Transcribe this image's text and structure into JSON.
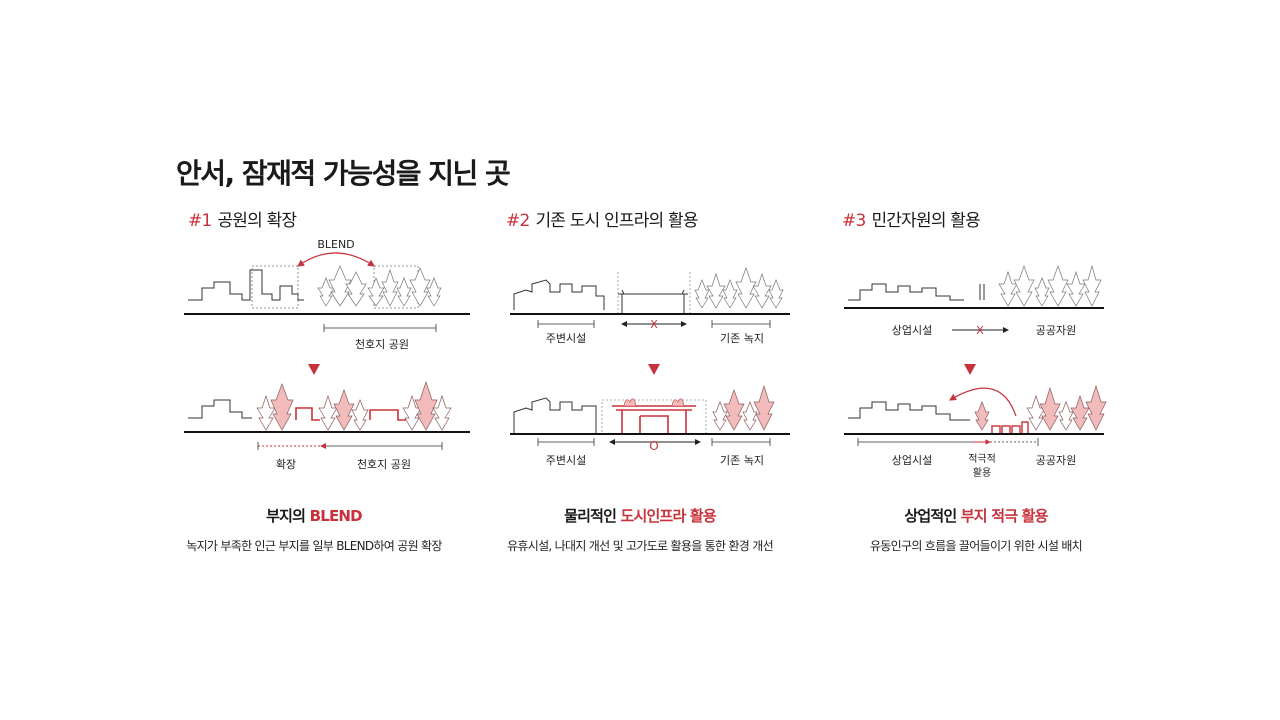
{
  "page_title": "안서, 잠재적 가능성을 지닌 곳",
  "colors": {
    "accent": "#c8323c",
    "tree_fill": "#f2bcbc",
    "ink": "#1a1a1a"
  },
  "sections": [
    {
      "number": "#1",
      "title": "공원의 확장",
      "labels": {
        "blend": "BLEND",
        "park_top": "천호지 공원",
        "expand": "확장",
        "park_bottom": "천호지 공원"
      },
      "subtitle_prefix": "부지의 ",
      "subtitle_highlight": "BLEND",
      "description": "녹지가 부족한 인근 부지를 일부 BLEND하여 공원 확장"
    },
    {
      "number": "#2",
      "title": "기존 도시 인프라의 활용",
      "labels": {
        "surround_top": "주변시설",
        "x_mark": "X",
        "green_top": "기존 녹지",
        "surround_bottom": "주변시설",
        "o_mark": "O",
        "green_bottom": "기존 녹지"
      },
      "subtitle_prefix": "물리적인 ",
      "subtitle_highlight": "도시인프라 활용",
      "description": "유휴시설, 나대지 개선 및 고가도로 활용을 통한 환경 개선"
    },
    {
      "number": "#3",
      "title": "민간자원의 활용",
      "labels": {
        "commercial_top": "상업시설",
        "x_mark": "X",
        "public_top": "공공자원",
        "commercial_bottom": "상업시설",
        "active_line1": "적극적",
        "active_line2": "활용",
        "public_bottom": "공공자원"
      },
      "subtitle_prefix": "상업적인 ",
      "subtitle_highlight": "부지 적극 활용",
      "description": "유동인구의 흐름을 끌어들이기 위한 시설 배치"
    }
  ]
}
